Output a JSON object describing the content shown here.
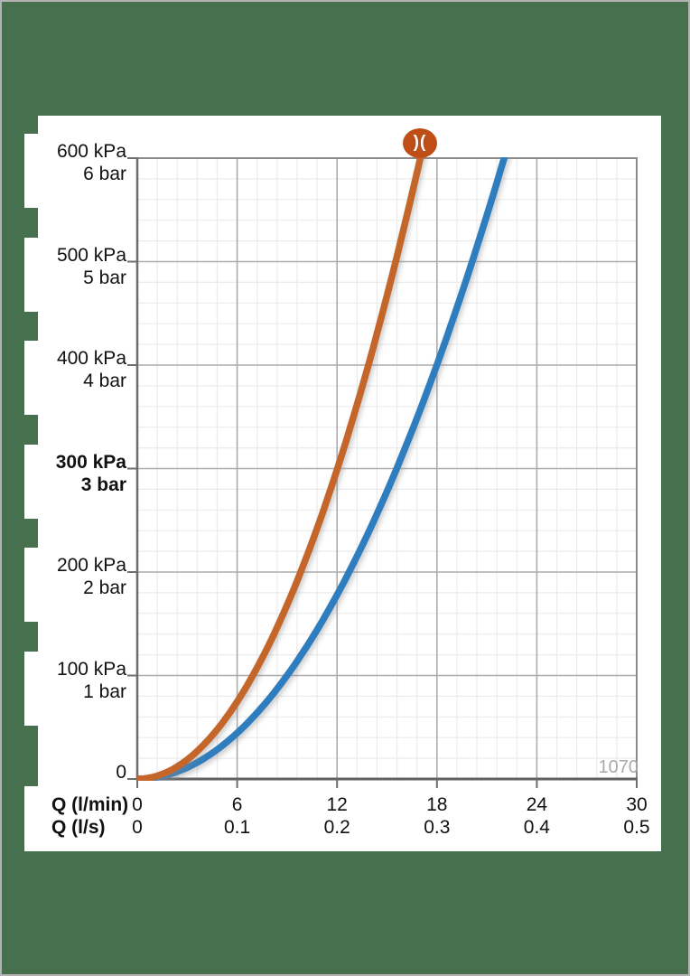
{
  "colors": {
    "background_green": "#47704F",
    "panel_white": "#FFFFFF",
    "frame_gray": "#8A8A8A",
    "axis_gray": "#6E6E6E",
    "grid_major": "#ACACAC",
    "grid_minor": "#EBEBEB",
    "text_black": "#111111",
    "annotation_gray": "#A9A9A9",
    "curve_orange": "#C4662B",
    "curve_blue": "#2D7DBE",
    "badge_orange": "#BF4E16"
  },
  "brand_badge": {
    "symbol": ")("
  },
  "chart_data": {
    "type": "line",
    "grid": true,
    "legend": false,
    "annotation": "1070",
    "x_axis": {
      "rows": [
        {
          "header": "Q (l/min)",
          "values": [
            "0",
            "6",
            "12",
            "18",
            "24",
            "30"
          ]
        },
        {
          "header": "Q (l/s)",
          "values": [
            "0",
            "0.1",
            "0.2",
            "0.3",
            "0.4",
            "0.5"
          ]
        }
      ],
      "range_lmin": [
        0,
        30
      ],
      "major_step_lmin": 6,
      "minor_step_lmin": 1.2
    },
    "y_axis": {
      "labels": [
        {
          "kpa": "600 kPa",
          "bar": "6 bar",
          "value": 600,
          "bold": false
        },
        {
          "kpa": "500 kPa",
          "bar": "5 bar",
          "value": 500,
          "bold": false
        },
        {
          "kpa": "400 kPa",
          "bar": "4 bar",
          "value": 400,
          "bold": false
        },
        {
          "kpa": "300 kPa",
          "bar": "3 bar",
          "value": 300,
          "bold": true
        },
        {
          "kpa": "200 kPa",
          "bar": "2 bar",
          "value": 200,
          "bold": false
        },
        {
          "kpa": "100 kPa",
          "bar": "1 bar",
          "value": 100,
          "bold": false
        },
        {
          "kpa": "0",
          "bar": "",
          "value": 0,
          "bold": false
        }
      ],
      "range_kpa": [
        0,
        600
      ],
      "major_step_kpa": 100,
      "minor_step_kpa": 20
    },
    "series": [
      {
        "name": "curve-orange",
        "color": "#C4662B",
        "points_lmin_kpa": [
          [
            0,
            0
          ],
          [
            2,
            8
          ],
          [
            4,
            33
          ],
          [
            6,
            75
          ],
          [
            8,
            133
          ],
          [
            10,
            208
          ],
          [
            12,
            299
          ],
          [
            14,
            407
          ],
          [
            16,
            531
          ],
          [
            17,
            600
          ]
        ]
      },
      {
        "name": "curve-blue",
        "color": "#2D7DBE",
        "points_lmin_kpa": [
          [
            0,
            0
          ],
          [
            3,
            11
          ],
          [
            6,
            44
          ],
          [
            9,
            100
          ],
          [
            12,
            178
          ],
          [
            15,
            278
          ],
          [
            18,
            400
          ],
          [
            21,
            544
          ],
          [
            22,
            598
          ]
        ]
      }
    ]
  }
}
